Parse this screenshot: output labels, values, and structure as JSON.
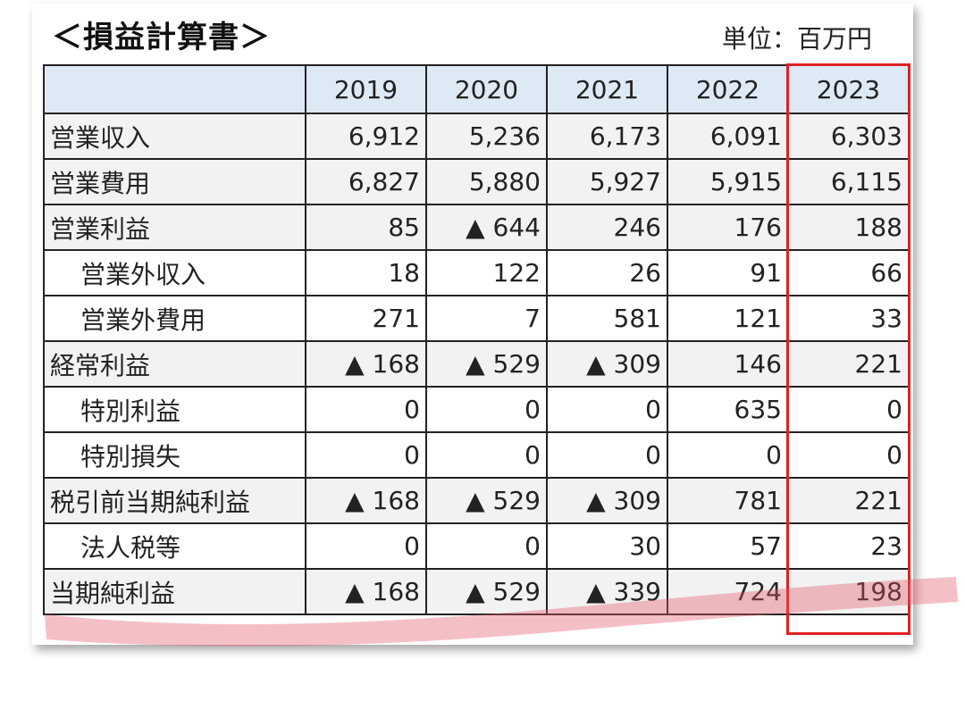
{
  "header": {
    "title": "＜損益計算書＞",
    "unit": "単位：百万円"
  },
  "table": {
    "years": [
      "2019",
      "2020",
      "2021",
      "2022",
      "2023"
    ],
    "rows": [
      {
        "label": "営業収入",
        "indent": false,
        "values": [
          "6,912",
          "5,236",
          "6,173",
          "6,091",
          "6,303"
        ]
      },
      {
        "label": "営業費用",
        "indent": false,
        "values": [
          "6,827",
          "5,880",
          "5,927",
          "5,915",
          "6,115"
        ]
      },
      {
        "label": "営業利益",
        "indent": false,
        "values": [
          "85",
          "▲ 644",
          "246",
          "176",
          "188"
        ]
      },
      {
        "label": "営業外収入",
        "indent": true,
        "values": [
          "18",
          "122",
          "26",
          "91",
          "66"
        ]
      },
      {
        "label": "営業外費用",
        "indent": true,
        "values": [
          "271",
          "7",
          "581",
          "121",
          "33"
        ]
      },
      {
        "label": "経常利益",
        "indent": false,
        "values": [
          "▲ 168",
          "▲ 529",
          "▲ 309",
          "146",
          "221"
        ]
      },
      {
        "label": "特別利益",
        "indent": true,
        "values": [
          "0",
          "0",
          "0",
          "635",
          "0"
        ]
      },
      {
        "label": "特別損失",
        "indent": true,
        "values": [
          "0",
          "0",
          "0",
          "0",
          "0"
        ]
      },
      {
        "label": "税引前当期純利益",
        "indent": false,
        "values": [
          "▲ 168",
          "▲ 529",
          "▲ 309",
          "781",
          "221"
        ]
      },
      {
        "label": "法人税等",
        "indent": true,
        "values": [
          "0",
          "0",
          "30",
          "57",
          "23"
        ]
      },
      {
        "label": "当期純利益",
        "indent": false,
        "values": [
          "▲ 168",
          "▲ 529",
          "▲ 339",
          "724",
          "198"
        ]
      }
    ]
  },
  "colors": {
    "header_bg": "#dde9f5",
    "highlight_border": "#e02020",
    "marker": "#e35a6a"
  }
}
